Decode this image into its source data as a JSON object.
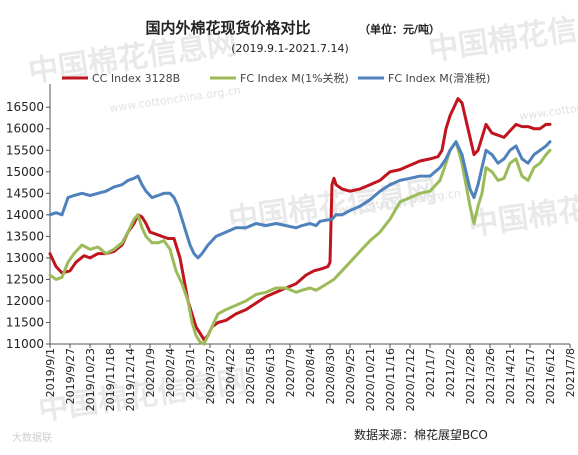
{
  "chart_data": {
    "type": "line",
    "title": "国内外棉花现货价格对比",
    "unit_label": "（单位：元/吨）",
    "subtitle": "(2019.9.1-2021.7.14)",
    "source": "数据来源：棉花展望BCO",
    "x_ticks": [
      "2019/9/1",
      "2019/9/27",
      "2019/10/23",
      "2019/11/18",
      "2019/12/14",
      "2020/1/9",
      "2020/2/4",
      "2020/3/1",
      "2020/3/27",
      "2020/4/22",
      "2020/5/18",
      "2020/6/13",
      "2020/7/9",
      "2020/8/4",
      "2020/8/30",
      "2020/9/25",
      "2020/10/21",
      "2020/11/16",
      "2020/12/12",
      "2021/1/7",
      "2021/2/2",
      "2021/2/28",
      "2021/3/26",
      "2021/4/21",
      "2021/5/17",
      "2021/6/12",
      "2021/7/8"
    ],
    "ylim": [
      11000,
      16900
    ],
    "y_ticks": [
      11000,
      11500,
      12000,
      12500,
      13000,
      13500,
      14000,
      14500,
      15000,
      15500,
      16000,
      16500
    ],
    "grid": false,
    "legend_position": "top",
    "series": [
      {
        "name": "CC Index 3128B",
        "color": "#c0141e",
        "points": [
          [
            0,
            13100
          ],
          [
            0.3,
            12800
          ],
          [
            0.6,
            12650
          ],
          [
            1,
            12700
          ],
          [
            1.3,
            12900
          ],
          [
            1.7,
            13050
          ],
          [
            2,
            13000
          ],
          [
            2.4,
            13100
          ],
          [
            2.8,
            13100
          ],
          [
            3.2,
            13150
          ],
          [
            3.6,
            13300
          ],
          [
            3.9,
            13600
          ],
          [
            4.2,
            13800
          ],
          [
            4.4,
            14000
          ],
          [
            4.6,
            13950
          ],
          [
            4.8,
            13800
          ],
          [
            5,
            13600
          ],
          [
            5.3,
            13550
          ],
          [
            5.6,
            13500
          ],
          [
            5.9,
            13450
          ],
          [
            6.2,
            13450
          ],
          [
            6.5,
            13000
          ],
          [
            6.7,
            12500
          ],
          [
            6.9,
            12000
          ],
          [
            7.1,
            11700
          ],
          [
            7.3,
            11400
          ],
          [
            7.5,
            11250
          ],
          [
            7.7,
            11100
          ],
          [
            7.9,
            11200
          ],
          [
            8.1,
            11400
          ],
          [
            8.4,
            11500
          ],
          [
            8.8,
            11550
          ],
          [
            9.3,
            11700
          ],
          [
            9.8,
            11800
          ],
          [
            10.3,
            11950
          ],
          [
            10.8,
            12100
          ],
          [
            11.3,
            12200
          ],
          [
            11.8,
            12300
          ],
          [
            12.3,
            12400
          ],
          [
            12.8,
            12600
          ],
          [
            13.2,
            12700
          ],
          [
            13.6,
            12750
          ],
          [
            13.9,
            12800
          ],
          [
            14,
            12900
          ],
          [
            14.1,
            14700
          ],
          [
            14.2,
            14850
          ],
          [
            14.3,
            14700
          ],
          [
            14.6,
            14600
          ],
          [
            15,
            14550
          ],
          [
            15.5,
            14600
          ],
          [
            16,
            14700
          ],
          [
            16.5,
            14800
          ],
          [
            17,
            15000
          ],
          [
            17.5,
            15050
          ],
          [
            18,
            15150
          ],
          [
            18.5,
            15250
          ],
          [
            19,
            15300
          ],
          [
            19.4,
            15350
          ],
          [
            19.6,
            15500
          ],
          [
            19.8,
            16000
          ],
          [
            20,
            16300
          ],
          [
            20.2,
            16500
          ],
          [
            20.4,
            16700
          ],
          [
            20.6,
            16600
          ],
          [
            20.8,
            16200
          ],
          [
            21,
            15800
          ],
          [
            21.2,
            15400
          ],
          [
            21.4,
            15500
          ],
          [
            21.6,
            15800
          ],
          [
            21.8,
            16100
          ],
          [
            22.1,
            15900
          ],
          [
            22.4,
            15850
          ],
          [
            22.7,
            15800
          ],
          [
            23,
            15950
          ],
          [
            23.3,
            16100
          ],
          [
            23.6,
            16050
          ],
          [
            23.9,
            16050
          ],
          [
            24.2,
            16000
          ],
          [
            24.5,
            16000
          ],
          [
            24.8,
            16100
          ],
          [
            25,
            16100
          ]
        ]
      },
      {
        "name": "FC Index M(1%关税)",
        "color": "#9bbb59",
        "points": [
          [
            0,
            12600
          ],
          [
            0.3,
            12500
          ],
          [
            0.6,
            12550
          ],
          [
            0.9,
            12900
          ],
          [
            1.2,
            13100
          ],
          [
            1.6,
            13300
          ],
          [
            2,
            13200
          ],
          [
            2.4,
            13250
          ],
          [
            2.8,
            13100
          ],
          [
            3.2,
            13200
          ],
          [
            3.6,
            13350
          ],
          [
            3.9,
            13600
          ],
          [
            4.2,
            13900
          ],
          [
            4.4,
            14000
          ],
          [
            4.6,
            13700
          ],
          [
            4.8,
            13500
          ],
          [
            5.1,
            13350
          ],
          [
            5.4,
            13350
          ],
          [
            5.7,
            13400
          ],
          [
            6,
            13200
          ],
          [
            6.3,
            12700
          ],
          [
            6.6,
            12400
          ],
          [
            6.9,
            12000
          ],
          [
            7.1,
            11500
          ],
          [
            7.3,
            11200
          ],
          [
            7.5,
            11050
          ],
          [
            7.7,
            11000
          ],
          [
            7.9,
            11200
          ],
          [
            8.1,
            11400
          ],
          [
            8.4,
            11700
          ],
          [
            8.8,
            11800
          ],
          [
            9.3,
            11900
          ],
          [
            9.8,
            12000
          ],
          [
            10.3,
            12150
          ],
          [
            10.8,
            12200
          ],
          [
            11.3,
            12300
          ],
          [
            11.8,
            12300
          ],
          [
            12.3,
            12200
          ],
          [
            12.6,
            12250
          ],
          [
            13,
            12300
          ],
          [
            13.3,
            12250
          ],
          [
            13.5,
            12300
          ],
          [
            14.2,
            12500
          ],
          [
            14.6,
            12700
          ],
          [
            15,
            12900
          ],
          [
            15.5,
            13150
          ],
          [
            16,
            13400
          ],
          [
            16.5,
            13600
          ],
          [
            17,
            13900
          ],
          [
            17.5,
            14300
          ],
          [
            18,
            14400
          ],
          [
            18.5,
            14500
          ],
          [
            19,
            14550
          ],
          [
            19.5,
            14800
          ],
          [
            19.8,
            15200
          ],
          [
            20,
            15500
          ],
          [
            20.3,
            15700
          ],
          [
            20.6,
            15200
          ],
          [
            20.8,
            14700
          ],
          [
            21,
            14200
          ],
          [
            21.2,
            13800
          ],
          [
            21.4,
            14200
          ],
          [
            21.6,
            14500
          ],
          [
            21.8,
            15100
          ],
          [
            22.1,
            15000
          ],
          [
            22.4,
            14800
          ],
          [
            22.7,
            14850
          ],
          [
            23,
            15200
          ],
          [
            23.3,
            15300
          ],
          [
            23.6,
            14900
          ],
          [
            23.9,
            14800
          ],
          [
            24.2,
            15100
          ],
          [
            24.5,
            15200
          ],
          [
            24.8,
            15400
          ],
          [
            25,
            15500
          ]
        ]
      },
      {
        "name": "FC Index M(滑准税)",
        "color": "#4f81bd",
        "points": [
          [
            0,
            14000
          ],
          [
            0.3,
            14050
          ],
          [
            0.6,
            14000
          ],
          [
            0.9,
            14400
          ],
          [
            1.2,
            14450
          ],
          [
            1.6,
            14500
          ],
          [
            2,
            14450
          ],
          [
            2.4,
            14500
          ],
          [
            2.8,
            14550
          ],
          [
            3.2,
            14650
          ],
          [
            3.6,
            14700
          ],
          [
            3.9,
            14800
          ],
          [
            4.2,
            14850
          ],
          [
            4.4,
            14900
          ],
          [
            4.6,
            14700
          ],
          [
            4.8,
            14550
          ],
          [
            5.1,
            14400
          ],
          [
            5.4,
            14450
          ],
          [
            5.7,
            14500
          ],
          [
            6,
            14500
          ],
          [
            6.2,
            14400
          ],
          [
            6.4,
            14200
          ],
          [
            6.6,
            13900
          ],
          [
            6.8,
            13600
          ],
          [
            7,
            13300
          ],
          [
            7.2,
            13100
          ],
          [
            7.4,
            13000
          ],
          [
            7.6,
            13100
          ],
          [
            7.9,
            13300
          ],
          [
            8.3,
            13500
          ],
          [
            8.8,
            13600
          ],
          [
            9.3,
            13700
          ],
          [
            9.8,
            13700
          ],
          [
            10.3,
            13800
          ],
          [
            10.8,
            13750
          ],
          [
            11.3,
            13800
          ],
          [
            11.8,
            13750
          ],
          [
            12.3,
            13700
          ],
          [
            12.6,
            13750
          ],
          [
            13,
            13800
          ],
          [
            13.3,
            13750
          ],
          [
            13.5,
            13850
          ],
          [
            14.1,
            13900
          ],
          [
            14.3,
            14000
          ],
          [
            14.6,
            14000
          ],
          [
            15,
            14100
          ],
          [
            15.5,
            14200
          ],
          [
            16,
            14350
          ],
          [
            16.5,
            14550
          ],
          [
            17,
            14700
          ],
          [
            17.5,
            14800
          ],
          [
            18,
            14850
          ],
          [
            18.5,
            14900
          ],
          [
            19,
            14900
          ],
          [
            19.5,
            15100
          ],
          [
            19.8,
            15300
          ],
          [
            20,
            15500
          ],
          [
            20.3,
            15700
          ],
          [
            20.6,
            15400
          ],
          [
            20.8,
            15000
          ],
          [
            21,
            14600
          ],
          [
            21.2,
            14400
          ],
          [
            21.4,
            14700
          ],
          [
            21.6,
            15100
          ],
          [
            21.8,
            15500
          ],
          [
            22.1,
            15400
          ],
          [
            22.4,
            15200
          ],
          [
            22.7,
            15300
          ],
          [
            23,
            15500
          ],
          [
            23.3,
            15600
          ],
          [
            23.6,
            15300
          ],
          [
            23.9,
            15200
          ],
          [
            24.2,
            15400
          ],
          [
            24.5,
            15500
          ],
          [
            24.8,
            15600
          ],
          [
            25,
            15700
          ]
        ]
      }
    ]
  },
  "watermark": {
    "text": "中国棉花信息网",
    "url": "www.cottonchina.org.cn",
    "corner": "大数据联"
  }
}
